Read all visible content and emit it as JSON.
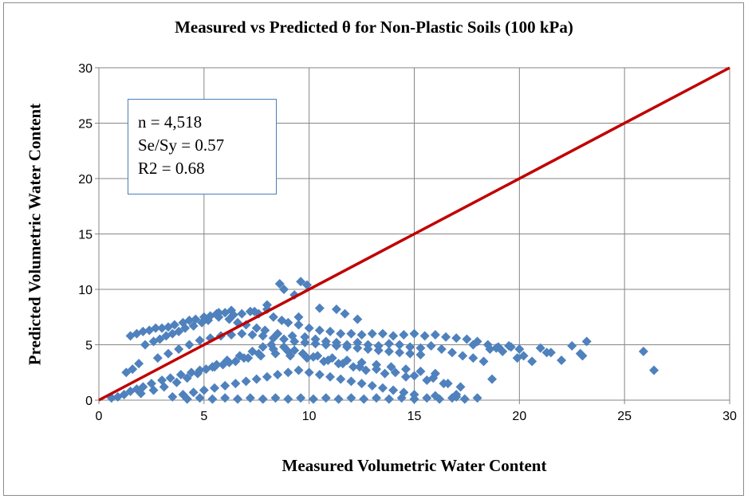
{
  "chart_data": {
    "type": "scatter",
    "title": "Measured vs Predicted θ for Non-Plastic Soils (100 kPa)",
    "xlabel": "Measured Volumetric Water Content",
    "ylabel": "Predicted Volumetric Water Content",
    "xlim": [
      0,
      30
    ],
    "ylim": [
      0,
      30
    ],
    "xticks": [
      "0",
      "5",
      "10",
      "15",
      "20",
      "25",
      "30"
    ],
    "yticks": [
      "0",
      "5",
      "10",
      "15",
      "20",
      "25",
      "30"
    ],
    "grid": true,
    "marker_color": "#4f81bd",
    "line_color": "#c00000",
    "annotation": {
      "n": "n = 4,518",
      "sesy": "Se/Sy = 0.57",
      "r2": "R2 = 0.68"
    },
    "series": [
      {
        "type": "line",
        "x": [
          0,
          30
        ],
        "y": [
          0,
          30
        ]
      },
      {
        "type": "scatter",
        "x": [
          1.5,
          1.8,
          2.1,
          2.4,
          2.7,
          3.0,
          3.3,
          3.6,
          4.0,
          4.3,
          4.6,
          5.0,
          5.3,
          5.6,
          6.0,
          6.4,
          6.8,
          7.2,
          7.6,
          8.0,
          8.3,
          8.7,
          9.0,
          9.5,
          10.0,
          10.5,
          11.0,
          11.5,
          12.0,
          12.5,
          13.0,
          13.5,
          14.0,
          14.5,
          15.0,
          15.5,
          16.0,
          16.5,
          17.0,
          17.5,
          18.0,
          18.5,
          19.0,
          19.5,
          20.0,
          1.3,
          1.6,
          1.9,
          2.2,
          2.6,
          2.9,
          3.2,
          3.5,
          3.8,
          4.1,
          4.5,
          4.9,
          5.2,
          5.7,
          6.2,
          6.6,
          7.0,
          7.5,
          7.9,
          8.5,
          9.2,
          9.8,
          10.3,
          10.8,
          11.3,
          11.8,
          12.3,
          12.8,
          13.3,
          13.8,
          14.3,
          14.8,
          15.3,
          15.8,
          16.3,
          16.8,
          17.3,
          17.8,
          18.3,
          0.6,
          0.9,
          1.2,
          1.5,
          1.8,
          2.1,
          2.5,
          3.0,
          3.4,
          3.9,
          4.4,
          4.8,
          5.4,
          5.9,
          6.5,
          7.1,
          7.7,
          8.4,
          9.1,
          9.9,
          10.7,
          11.6,
          12.4,
          13.2,
          14.1,
          15.0,
          15.9,
          16.6,
          17.2,
          2.0,
          2.6,
          3.1,
          3.7,
          4.2,
          4.7,
          5.1,
          5.6,
          6.1,
          6.7,
          7.3,
          7.8,
          8.2,
          8.8,
          9.3,
          9.7,
          10.2,
          10.9,
          11.4,
          12.1,
          12.7,
          13.6,
          14.6,
          15.6,
          16.4,
          3.5,
          4.0,
          4.5,
          5.0,
          5.5,
          6.0,
          6.5,
          7.0,
          7.5,
          8.0,
          8.5,
          9.0,
          9.5,
          10.0,
          10.5,
          11.0,
          11.5,
          12.0,
          12.5,
          13.0,
          13.5,
          14.0,
          14.5,
          15.0,
          16.0,
          17.0,
          2.8,
          3.3,
          3.8,
          4.3,
          4.8,
          5.3,
          5.8,
          6.3,
          6.8,
          7.3,
          7.8,
          8.3,
          8.8,
          9.3,
          9.8,
          10.3,
          10.8,
          11.3,
          11.8,
          12.3,
          12.8,
          13.3,
          13.8,
          14.3,
          14.8,
          15.3,
          4.2,
          4.8,
          5.4,
          6.0,
          6.6,
          7.2,
          7.8,
          8.4,
          9.0,
          9.6,
          10.2,
          10.8,
          11.4,
          12.0,
          12.6,
          13.2,
          13.8,
          14.4,
          15.0,
          15.6,
          16.2,
          16.8,
          17.4,
          18.0,
          5.5,
          6.2,
          6.9,
          7.6,
          8.3,
          9.0,
          9.7,
          10.4,
          11.1,
          11.8,
          12.5,
          13.2,
          13.9,
          14.6,
          15.3,
          16.0,
          8.6,
          8.8,
          9.6,
          9.9,
          9.3,
          10.5,
          11.3,
          11.7,
          8.0,
          7.4,
          6.3,
          5.7,
          9.5,
          12.3,
          17.8,
          18.6,
          19.2,
          19.6,
          20.2,
          20.6,
          21.0,
          21.5,
          22.0,
          22.5,
          23.0,
          23.2,
          18.9,
          19.9,
          21.3,
          22.9,
          25.9,
          26.4,
          18.7,
          17.0
        ],
        "y": [
          5.8,
          6.0,
          6.2,
          6.3,
          6.5,
          6.5,
          6.6,
          6.8,
          7.0,
          7.2,
          7.3,
          7.5,
          7.6,
          7.8,
          7.9,
          7.7,
          7.8,
          8.0,
          7.8,
          8.2,
          7.5,
          7.2,
          7.0,
          6.8,
          6.5,
          6.3,
          6.2,
          6.0,
          6.0,
          5.9,
          6.0,
          6.0,
          5.8,
          5.9,
          6.0,
          5.8,
          5.9,
          5.7,
          5.6,
          5.5,
          5.3,
          5.0,
          4.8,
          4.9,
          4.6,
          2.5,
          2.8,
          3.3,
          5.0,
          5.3,
          5.5,
          5.8,
          6.0,
          6.2,
          6.5,
          6.7,
          7.0,
          7.2,
          7.5,
          7.3,
          7.0,
          6.8,
          6.5,
          6.3,
          6.0,
          5.8,
          5.7,
          5.5,
          5.3,
          5.2,
          5.0,
          5.2,
          5.0,
          4.9,
          5.1,
          5.0,
          4.8,
          4.7,
          4.9,
          4.6,
          4.3,
          4.0,
          3.8,
          3.5,
          0.2,
          0.3,
          0.5,
          0.8,
          1.0,
          1.2,
          1.5,
          1.8,
          2.0,
          2.3,
          2.5,
          2.7,
          3.0,
          3.2,
          3.5,
          3.8,
          4.0,
          4.2,
          4.0,
          3.8,
          3.5,
          3.3,
          3.0,
          2.8,
          2.5,
          2.2,
          2.0,
          1.5,
          1.2,
          0.6,
          0.9,
          1.2,
          1.6,
          2.0,
          2.4,
          2.8,
          3.2,
          3.6,
          4.0,
          4.4,
          4.8,
          5.0,
          4.8,
          4.5,
          4.2,
          3.9,
          3.6,
          3.3,
          3.0,
          2.7,
          2.4,
          2.1,
          1.8,
          1.5,
          0.3,
          0.5,
          0.7,
          0.9,
          1.1,
          1.3,
          1.5,
          1.7,
          1.9,
          2.1,
          2.3,
          2.5,
          2.7,
          2.5,
          2.3,
          2.1,
          1.9,
          1.7,
          1.5,
          1.3,
          1.1,
          0.9,
          0.7,
          0.5,
          0.4,
          0.3,
          3.8,
          4.2,
          4.6,
          5.0,
          5.4,
          5.6,
          5.8,
          5.9,
          6.0,
          5.9,
          5.8,
          5.6,
          5.5,
          5.3,
          5.2,
          5.1,
          5.0,
          4.9,
          4.8,
          4.7,
          4.6,
          4.5,
          4.4,
          4.3,
          4.2,
          4.1,
          0.1,
          0.2,
          0.1,
          0.2,
          0.1,
          0.2,
          0.1,
          0.2,
          0.1,
          0.2,
          0.1,
          0.2,
          0.1,
          0.2,
          0.1,
          0.2,
          0.1,
          0.2,
          0.1,
          0.2,
          0.1,
          0.2,
          0.1,
          0.2,
          3.0,
          3.4,
          3.8,
          4.2,
          4.6,
          4.4,
          4.2,
          4.0,
          3.8,
          3.6,
          3.4,
          3.2,
          3.0,
          2.8,
          2.6,
          2.4,
          10.5,
          10.0,
          10.7,
          10.4,
          9.5,
          8.3,
          8.2,
          7.8,
          8.6,
          8.0,
          8.1,
          7.9,
          7.5,
          7.3,
          5.0,
          4.6,
          4.4,
          4.8,
          4.0,
          3.5,
          4.7,
          4.3,
          3.6,
          4.9,
          4.0,
          5.3,
          4.7,
          3.8,
          4.3,
          4.2,
          4.4,
          2.7,
          1.9,
          0.5
        ]
      }
    ]
  }
}
